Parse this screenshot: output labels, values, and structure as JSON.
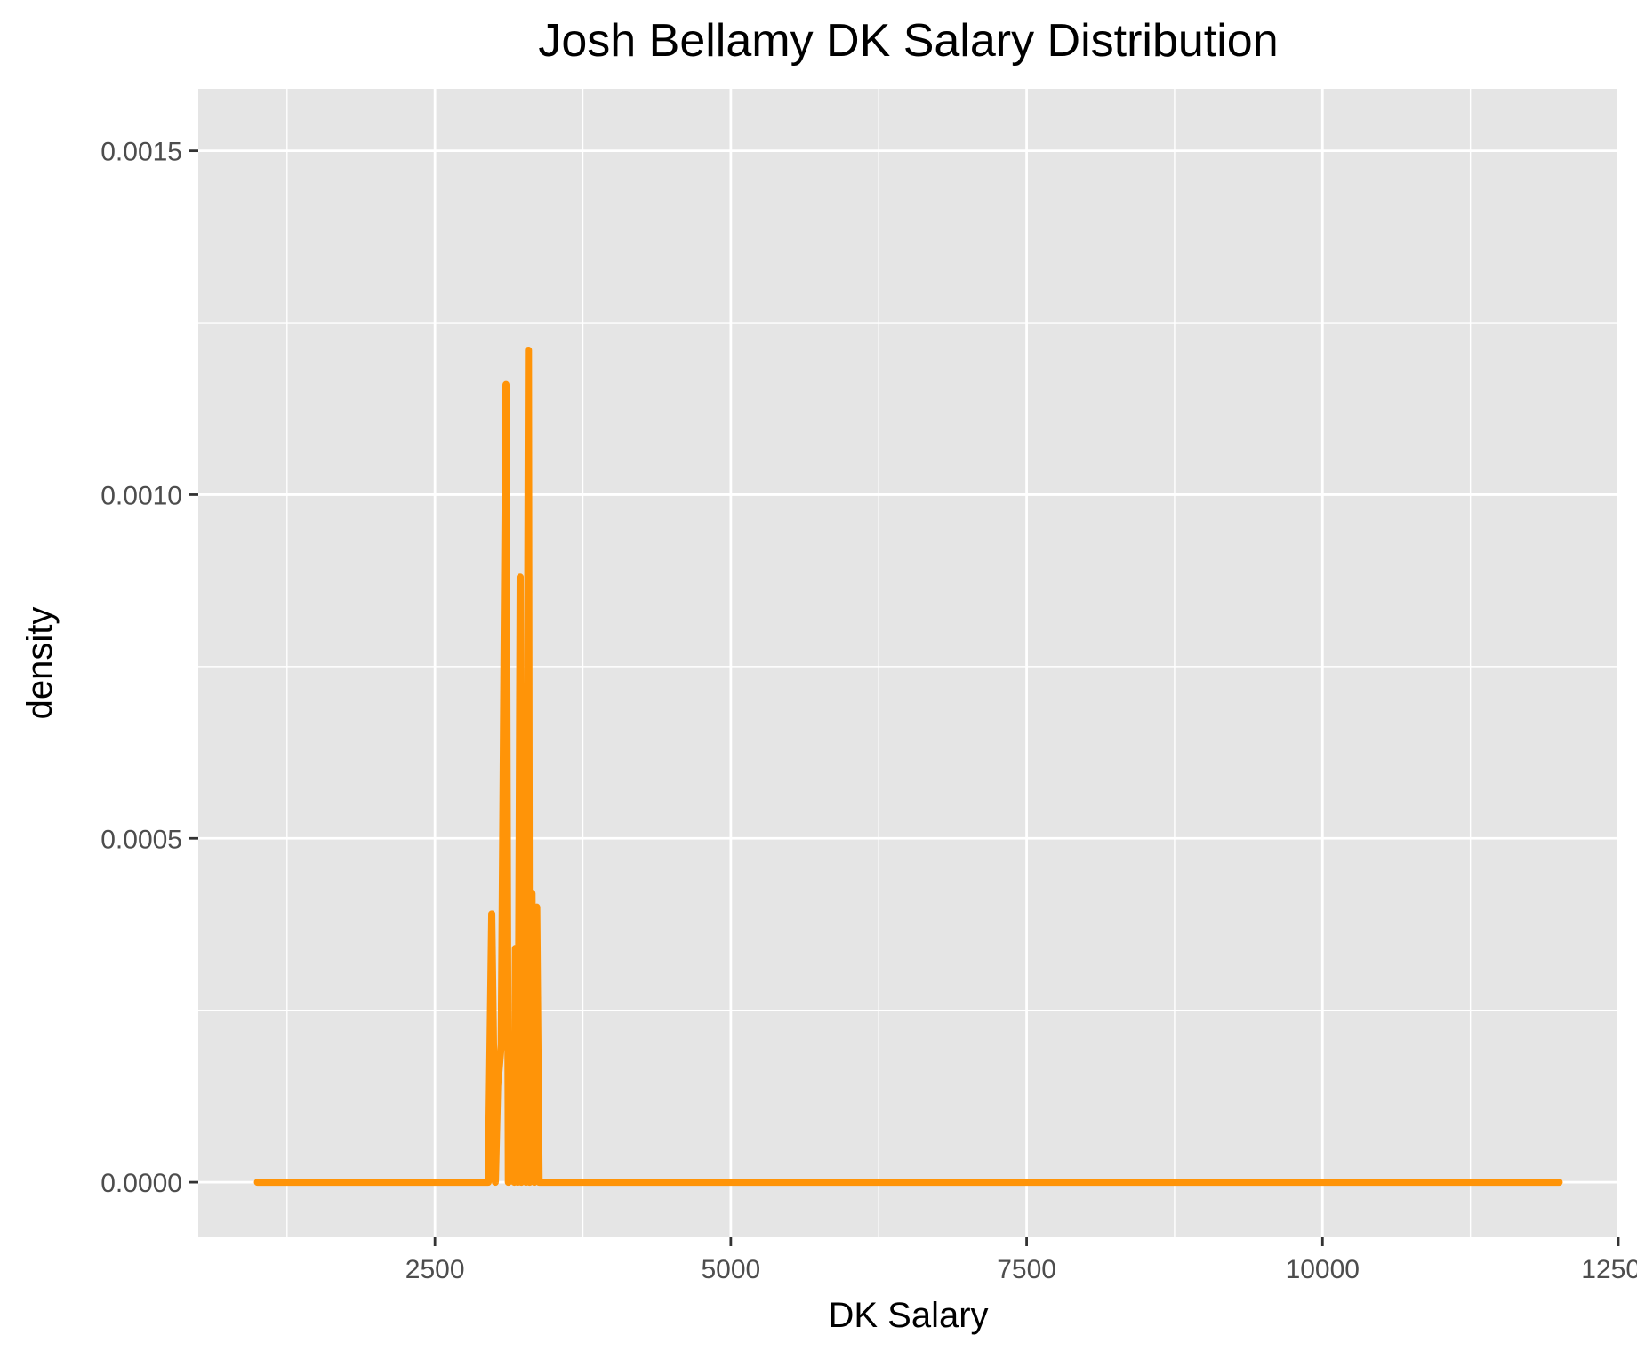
{
  "chart_data": {
    "type": "line",
    "title": "Josh Bellamy DK Salary Distribution",
    "xlabel": "DK Salary",
    "ylabel": "density",
    "xlim": [
      500,
      12500
    ],
    "ylim": [
      -8e-05,
      0.00159
    ],
    "x_ticks": [
      2500,
      5000,
      7500,
      10000,
      12500
    ],
    "x_tick_labels": [
      "2500",
      "5000",
      "7500",
      "10000",
      "12500"
    ],
    "y_ticks": [
      0,
      0.0005,
      0.001,
      0.0015
    ],
    "y_tick_labels": [
      "0.0000",
      "0.0005",
      "0.0010",
      "0.0015"
    ],
    "grid": true,
    "line_color": "#ff9408",
    "panel_background": "#e5e5e5",
    "grid_color": "#ffffff",
    "series": [
      {
        "x": [
          1000,
          2950,
          2980,
          3010,
          3030,
          3060,
          3100,
          3120,
          3140,
          3170,
          3180,
          3200,
          3220,
          3230,
          3250,
          3270,
          3290,
          3300,
          3320,
          3340,
          3360,
          3380,
          12000
        ],
        "y": [
          0,
          0,
          0.00039,
          0,
          0.00014,
          0.0002,
          0.00116,
          0,
          0.00015,
          0,
          0.00034,
          0,
          0.00088,
          0,
          0.0004,
          0,
          0.00121,
          0,
          0.00042,
          0,
          0.0004,
          0,
          0
        ]
      }
    ]
  }
}
